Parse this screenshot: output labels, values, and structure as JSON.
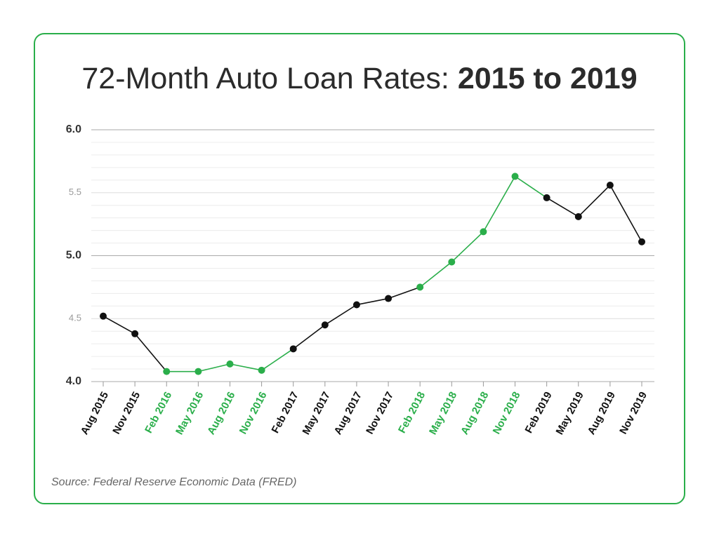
{
  "chart_data": {
    "type": "line",
    "title_parts": [
      "72-Month Auto Loan Rates: ",
      "2015 to 2019"
    ],
    "source": "Source: Federal Reserve Economic Data (FRED)",
    "categories": [
      "Aug 2015",
      "Nov 2015",
      "Feb 2016",
      "May 2016",
      "Aug 2016",
      "Nov 2016",
      "Feb 2017",
      "May 2017",
      "Aug 2017",
      "Nov 2017",
      "Feb 2018",
      "May 2018",
      "Aug 2018",
      "Nov 2018",
      "Feb 2019",
      "May 2019",
      "Aug 2019",
      "Nov 2019"
    ],
    "values": [
      4.52,
      4.38,
      4.08,
      4.08,
      4.14,
      4.09,
      4.26,
      4.45,
      4.61,
      4.66,
      4.75,
      4.95,
      5.19,
      5.63,
      5.46,
      5.31,
      5.56,
      5.11
    ],
    "point_colors": [
      "#111111",
      "#111111",
      "#2aae4a",
      "#2aae4a",
      "#2aae4a",
      "#2aae4a",
      "#111111",
      "#111111",
      "#111111",
      "#111111",
      "#2aae4a",
      "#2aae4a",
      "#2aae4a",
      "#2aae4a",
      "#111111",
      "#111111",
      "#111111",
      "#111111"
    ],
    "ylim": [
      4,
      6
    ],
    "yticks": [
      {
        "value": 4,
        "label": "4.0"
      },
      {
        "value": 4.5,
        "label": "4.5"
      },
      {
        "value": 5,
        "label": "5.0"
      },
      {
        "value": 5.5,
        "label": "5.5"
      },
      {
        "value": 6,
        "label": "6.0"
      }
    ],
    "major_yticks": [
      4,
      5,
      6
    ],
    "minor_yticks": [
      4.1,
      4.2,
      4.3,
      4.4,
      4.6,
      4.7,
      4.8,
      4.9,
      5.1,
      5.2,
      5.3,
      5.4,
      5.6,
      5.7,
      5.8,
      5.9
    ],
    "grid": true,
    "frame_color": "#2aae4a"
  }
}
